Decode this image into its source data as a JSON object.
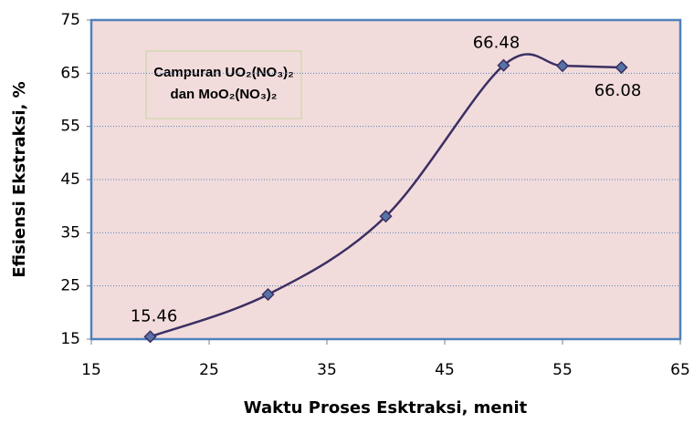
{
  "chart_data": {
    "type": "line",
    "xlabel": "Waktu Proses Esktraksi, menit",
    "ylabel": "Efisiensi Ekstraksi, %",
    "annotations": [
      "Campuran UO₂(NO₃)₂",
      "dan  MoO₂(NO₃)₂"
    ],
    "series": [
      {
        "color": "#3b2f63",
        "marker_color": "#5673a8",
        "x": [
          20,
          30,
          40,
          50,
          55,
          60
        ],
        "values": [
          15.46,
          23.4,
          38.1,
          66.48,
          66.4,
          66.08
        ],
        "value_labels": [
          "15.46",
          null,
          null,
          "66.48",
          null,
          "66.08"
        ]
      }
    ],
    "xlim": [
      15,
      65
    ],
    "xticks": [
      15,
      25,
      35,
      45,
      55,
      65
    ],
    "ylim": [
      15,
      75
    ],
    "yticks": [
      15,
      25,
      35,
      45,
      55,
      65,
      75
    ],
    "grid": true,
    "smooth": true
  }
}
